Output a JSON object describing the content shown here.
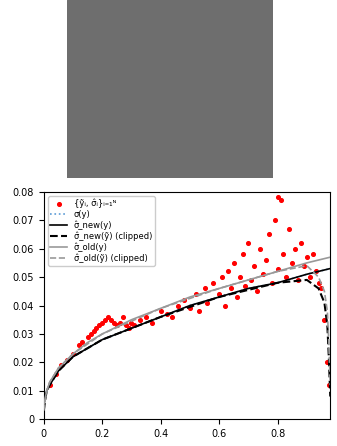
{
  "chart_data": {
    "type": "line",
    "legend": "upper left",
    "xlim": [
      0,
      0.98
    ],
    "ylim": [
      0,
      0.08
    ],
    "xticks": [
      0,
      0.2,
      0.4,
      0.6,
      0.8
    ],
    "yticks": [
      0,
      0.01,
      0.02,
      0.03,
      0.04,
      0.05,
      0.06,
      0.07,
      0.08
    ],
    "series": [
      {
        "name": "{ỹᵢ, σ̂ᵢ}ᵢ₌₁ᴺ",
        "type": "scatter",
        "color": "#ff0000",
        "marker": "o",
        "x": [
          0.02,
          0.04,
          0.06,
          0.08,
          0.1,
          0.12,
          0.13,
          0.15,
          0.16,
          0.17,
          0.18,
          0.19,
          0.2,
          0.21,
          0.22,
          0.23,
          0.24,
          0.25,
          0.26,
          0.27,
          0.28,
          0.29,
          0.3,
          0.31,
          0.33,
          0.35,
          0.37,
          0.4,
          0.42,
          0.44,
          0.46,
          0.48,
          0.5,
          0.52,
          0.53,
          0.55,
          0.56,
          0.58,
          0.6,
          0.61,
          0.62,
          0.63,
          0.64,
          0.65,
          0.66,
          0.67,
          0.68,
          0.69,
          0.7,
          0.71,
          0.72,
          0.73,
          0.74,
          0.75,
          0.76,
          0.77,
          0.78,
          0.79,
          0.8,
          0.8,
          0.81,
          0.82,
          0.83,
          0.84,
          0.85,
          0.86,
          0.87,
          0.88,
          0.89,
          0.9,
          0.91,
          0.92,
          0.93,
          0.94,
          0.95,
          0.96,
          0.97,
          0.975
        ],
        "values": [
          0.012,
          0.016,
          0.019,
          0.021,
          0.023,
          0.026,
          0.027,
          0.029,
          0.03,
          0.031,
          0.032,
          0.033,
          0.034,
          0.035,
          0.036,
          0.035,
          0.034,
          0.033,
          0.034,
          0.036,
          0.033,
          0.032,
          0.034,
          0.033,
          0.035,
          0.036,
          0.034,
          0.038,
          0.037,
          0.036,
          0.04,
          0.042,
          0.039,
          0.044,
          0.038,
          0.046,
          0.041,
          0.048,
          0.044,
          0.05,
          0.04,
          0.052,
          0.046,
          0.055,
          0.043,
          0.05,
          0.058,
          0.047,
          0.062,
          0.049,
          0.054,
          0.045,
          0.06,
          0.051,
          0.056,
          0.065,
          0.048,
          0.07,
          0.078,
          0.053,
          0.077,
          0.058,
          0.05,
          0.067,
          0.055,
          0.06,
          0.049,
          0.062,
          0.054,
          0.057,
          0.05,
          0.058,
          0.052,
          0.048,
          0.046,
          0.035,
          0.02,
          0.012
        ]
      },
      {
        "name": "σ(y)",
        "type": "line",
        "color": "#5b9bd5",
        "line_style": "dotted",
        "x": [
          0,
          0.01,
          0.02,
          0.05,
          0.1,
          0.15,
          0.2,
          0.3,
          0.4,
          0.5,
          0.6,
          0.7,
          0.8,
          0.9,
          0.98
        ],
        "values": [
          0.005,
          0.01,
          0.012,
          0.017,
          0.022,
          0.025,
          0.028,
          0.032,
          0.036,
          0.04,
          0.043,
          0.046,
          0.048,
          0.051,
          0.053
        ]
      },
      {
        "name": "σ̂_new(y)",
        "type": "line",
        "color": "#000000",
        "line_style": "solid",
        "x": [
          0,
          0.01,
          0.02,
          0.05,
          0.1,
          0.15,
          0.2,
          0.3,
          0.4,
          0.5,
          0.6,
          0.7,
          0.8,
          0.9,
          0.98
        ],
        "values": [
          0.005,
          0.01,
          0.012,
          0.017,
          0.022,
          0.025,
          0.028,
          0.032,
          0.036,
          0.04,
          0.043,
          0.046,
          0.048,
          0.051,
          0.053
        ]
      },
      {
        "name": "σ̂_new(ỹ) (clipped)",
        "type": "line",
        "color": "#000000",
        "line_style": "dashed",
        "x": [
          0,
          0.005,
          0.01,
          0.02,
          0.05,
          0.1,
          0.2,
          0.4,
          0.6,
          0.8,
          0.9,
          0.94,
          0.96,
          0.97,
          0.975,
          0.98
        ],
        "values": [
          0.003,
          0.007,
          0.01,
          0.012,
          0.017,
          0.022,
          0.028,
          0.036,
          0.043,
          0.048,
          0.049,
          0.046,
          0.041,
          0.033,
          0.022,
          0.008
        ]
      },
      {
        "name": "σ̂_old(y)",
        "type": "line",
        "color": "#999999",
        "line_style": "solid",
        "x": [
          0,
          0.01,
          0.02,
          0.05,
          0.1,
          0.15,
          0.2,
          0.3,
          0.4,
          0.5,
          0.6,
          0.7,
          0.8,
          0.9,
          0.98
        ],
        "values": [
          0.005,
          0.01,
          0.013,
          0.018,
          0.023,
          0.027,
          0.03,
          0.035,
          0.039,
          0.043,
          0.046,
          0.049,
          0.052,
          0.055,
          0.057
        ]
      },
      {
        "name": "σ̂_old(ỹ) (clipped)",
        "type": "line",
        "color": "#999999",
        "line_style": "dashed",
        "x": [
          0,
          0.005,
          0.01,
          0.02,
          0.05,
          0.1,
          0.2,
          0.4,
          0.6,
          0.8,
          0.9,
          0.94,
          0.96,
          0.97,
          0.975,
          0.98
        ],
        "values": [
          0.003,
          0.007,
          0.01,
          0.013,
          0.018,
          0.023,
          0.03,
          0.039,
          0.046,
          0.052,
          0.054,
          0.05,
          0.045,
          0.038,
          0.027,
          0.012
        ]
      }
    ]
  }
}
